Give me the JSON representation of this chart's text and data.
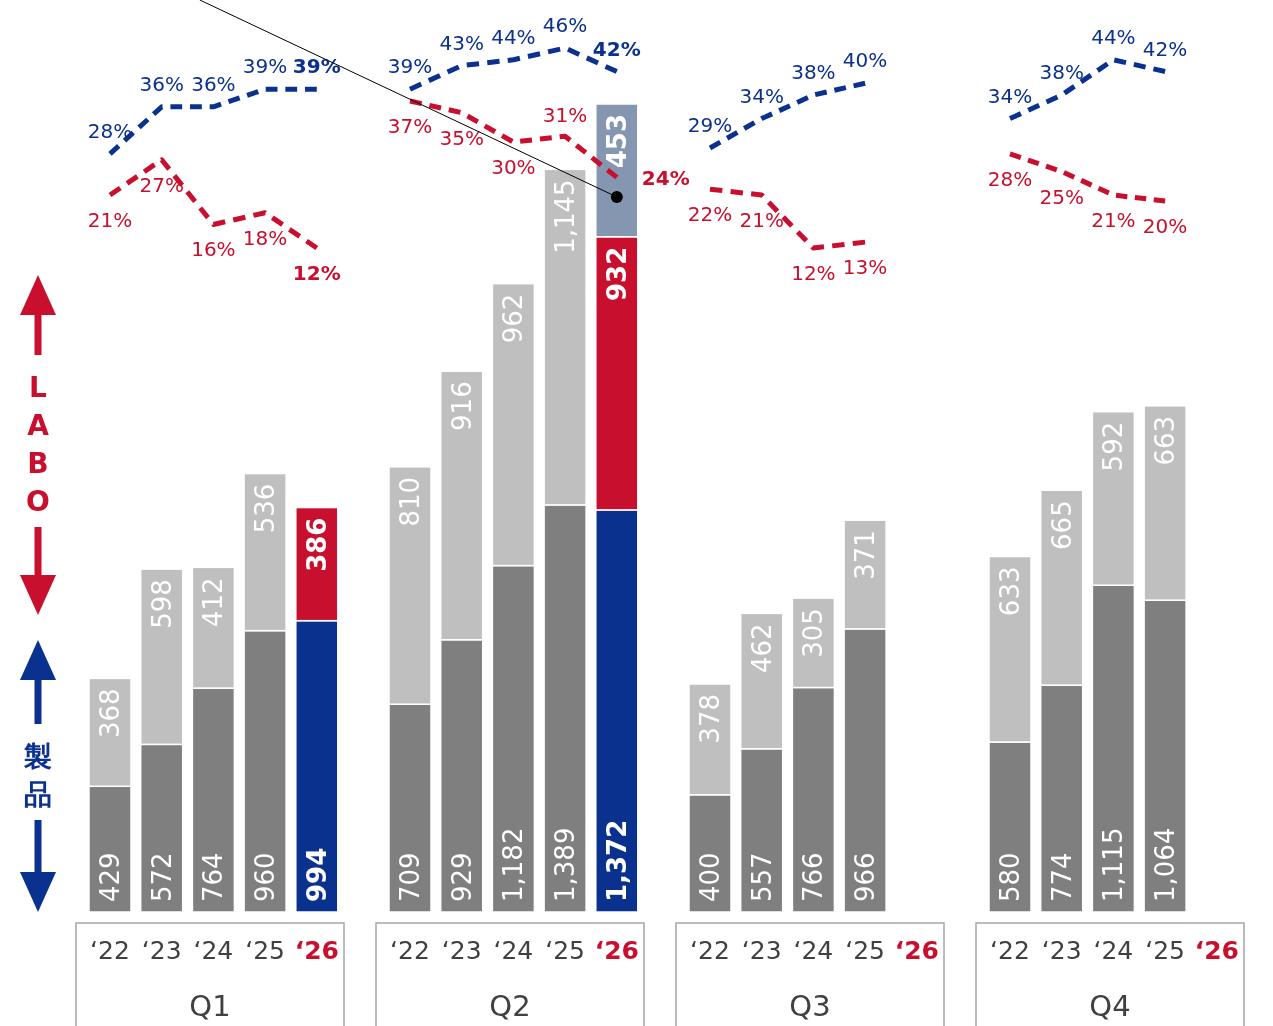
{
  "chart_data": [
    {
      "type": "line",
      "categories": [
        null,
        null,
        null,
        null,
        null
      ],
      "tick_labels": false,
      "line_style": "dashed",
      "series": [
        {
          "color": "#0b318f",
          "values": [
            28,
            36,
            36,
            39,
            39
          ],
          "value_labels": [
            "28%",
            "36%",
            "36%",
            "39%",
            "39%"
          ]
        },
        {
          "color": "#c8102e",
          "values": [
            21,
            27,
            16,
            18,
            12
          ],
          "value_labels": [
            "21%",
            "27%",
            "16%",
            "18%",
            "12%"
          ]
        }
      ]
    },
    {
      "type": "bar",
      "stacked": true,
      "xlabel": "Q1",
      "categories": [
        "‘22",
        "‘23",
        "‘24",
        "‘25",
        "‘26"
      ],
      "tick_labels": "x",
      "legend": "left",
      "series": [
        {
          "name": "製品",
          "color": "#0b318f",
          "colors": [
            "#7f7f7f",
            "#7f7f7f",
            "#7f7f7f",
            "#7f7f7f",
            "#0b318f"
          ],
          "values": [
            429,
            572,
            764,
            960,
            994
          ],
          "value_labels": [
            "429",
            "572",
            "764",
            "960",
            "994"
          ]
        },
        {
          "name": "LABO",
          "color": "#c8102e",
          "colors": [
            "#bfbfbf",
            "#bfbfbf",
            "#bfbfbf",
            "#bfbfbf",
            "#c8102e"
          ],
          "values": [
            368,
            598,
            412,
            536,
            386
          ],
          "value_labels": [
            "368",
            "598",
            "412",
            "536",
            "386"
          ]
        }
      ]
    },
    {
      "type": "line",
      "categories": [
        null,
        null,
        null,
        null,
        null
      ],
      "tick_labels": false,
      "line_style": "dashed",
      "series": [
        {
          "color": "#0b318f",
          "values": [
            39,
            43,
            44,
            46,
            42
          ],
          "value_labels": [
            "39%",
            "43%",
            "44%",
            "46%",
            "42%"
          ]
        },
        {
          "color": "#c8102e",
          "values": [
            37,
            35,
            30,
            31,
            24
          ],
          "value_labels": [
            "37%",
            "35%",
            "30%",
            "31%",
            "24%"
          ]
        }
      ]
    },
    {
      "type": "bar",
      "stacked": true,
      "xlabel": "Q2",
      "categories": [
        "‘22",
        "‘23",
        "‘24",
        "‘25",
        "‘26"
      ],
      "tick_labels": "x",
      "series": [
        {
          "colors": [
            "#7f7f7f",
            "#7f7f7f",
            "#7f7f7f",
            "#7f7f7f",
            "#0b318f"
          ],
          "values": [
            709,
            929,
            1182,
            1389,
            1372
          ],
          "value_labels": [
            "709",
            "929",
            "1,182",
            "1,389",
            "1,372"
          ]
        },
        {
          "colors": [
            "#bfbfbf",
            "#bfbfbf",
            "#bfbfbf",
            "#bfbfbf",
            "#c8102e"
          ],
          "values": [
            810,
            916,
            962,
            1145,
            932
          ],
          "value_labels": [
            "810",
            "916",
            "962",
            "1,145",
            "932"
          ]
        },
        {
          "color": "#8496b0",
          "values": [
            null,
            null,
            null,
            null,
            453
          ],
          "value_labels": [
            null,
            null,
            null,
            null,
            "453"
          ]
        }
      ]
    },
    {
      "type": "line",
      "categories": [
        null,
        null,
        null,
        null,
        null
      ],
      "tick_labels": false,
      "line_style": "dashed",
      "series": [
        {
          "color": "#0b318f",
          "values": [
            29,
            34,
            38,
            40,
            null
          ],
          "value_labels": [
            "29%",
            "34%",
            "38%",
            "40%",
            null
          ]
        },
        {
          "color": "#c8102e",
          "values": [
            22,
            21,
            12,
            13,
            null
          ],
          "value_labels": [
            "22%",
            "21%",
            "12%",
            "13%",
            null
          ]
        }
      ]
    },
    {
      "type": "bar",
      "stacked": true,
      "xlabel": "Q3",
      "categories": [
        "‘22",
        "‘23",
        "‘24",
        "‘25",
        "‘26"
      ],
      "tick_labels": "x",
      "series": [
        {
          "colors": [
            "#7f7f7f",
            "#7f7f7f",
            "#7f7f7f",
            "#7f7f7f",
            "#0b318f"
          ],
          "values": [
            400,
            557,
            766,
            966,
            null
          ],
          "value_labels": [
            "400",
            "557",
            "766",
            "966",
            null
          ]
        },
        {
          "colors": [
            "#bfbfbf",
            "#bfbfbf",
            "#bfbfbf",
            "#bfbfbf",
            "#c8102e"
          ],
          "values": [
            378,
            462,
            305,
            371,
            null
          ],
          "value_labels": [
            "378",
            "462",
            "305",
            "371",
            null
          ]
        }
      ]
    },
    {
      "type": "line",
      "categories": [
        null,
        null,
        null,
        null,
        null
      ],
      "tick_labels": false,
      "line_style": "dashed",
      "series": [
        {
          "color": "#0b318f",
          "values": [
            34,
            38,
            44,
            42,
            null
          ],
          "value_labels": [
            "34%",
            "38%",
            "44%",
            "42%",
            null
          ]
        },
        {
          "color": "#c8102e",
          "values": [
            28,
            25,
            21,
            20,
            null
          ],
          "value_labels": [
            "28%",
            "25%",
            "21%",
            "20%",
            null
          ]
        }
      ]
    },
    {
      "type": "bar",
      "stacked": true,
      "xlabel": "Q4",
      "categories": [
        "‘22",
        "‘23",
        "‘24",
        "‘25",
        "‘26"
      ],
      "tick_labels": "x",
      "series": [
        {
          "colors": [
            "#7f7f7f",
            "#7f7f7f",
            "#7f7f7f",
            "#7f7f7f",
            "#0b318f"
          ],
          "values": [
            580,
            774,
            1115,
            1064,
            null
          ],
          "value_labels": [
            "580",
            "774",
            "1,115",
            "1,064",
            null
          ]
        },
        {
          "colors": [
            "#bfbfbf",
            "#bfbfbf",
            "#bfbfbf",
            "#bfbfbf",
            "#c8102e"
          ],
          "values": [
            633,
            665,
            592,
            663,
            null
          ],
          "value_labels": [
            "633",
            "665",
            "592",
            "663",
            null
          ]
        }
      ]
    }
  ]
}
